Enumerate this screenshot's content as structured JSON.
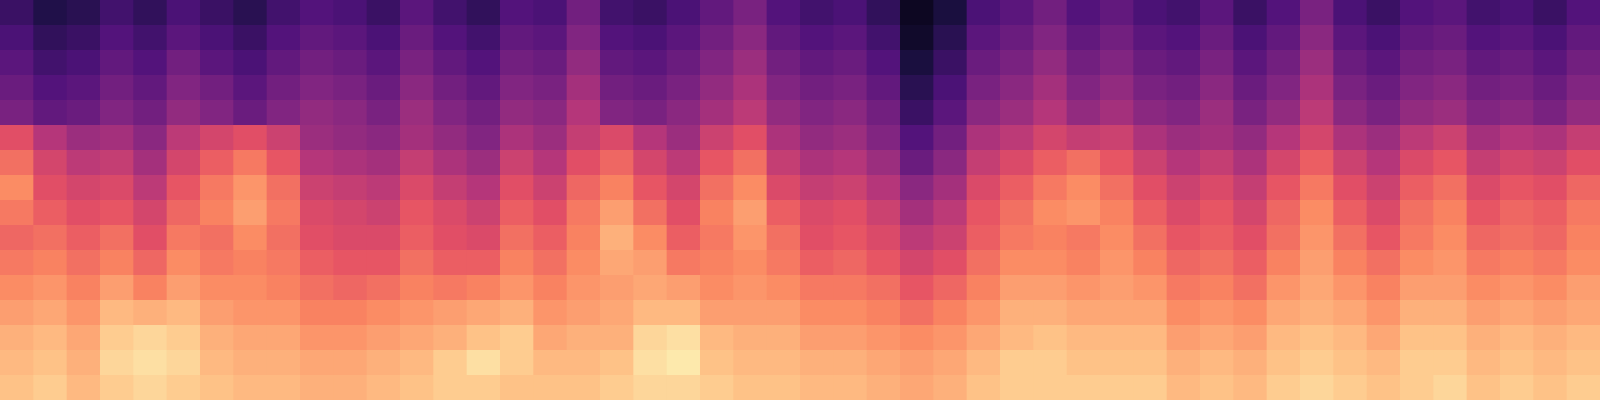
{
  "chart_data": {
    "type": "heatmap",
    "tick_labels": false,
    "xlim": [
      0,
      48
    ],
    "ylim": [
      0,
      16
    ],
    "color_range": [
      0,
      100
    ],
    "cells": [
      [
        20,
        14,
        16,
        22,
        18,
        24,
        20,
        16,
        22,
        26,
        24,
        20,
        28,
        22,
        18,
        26,
        24,
        34,
        22,
        20,
        24,
        30,
        36,
        26,
        22,
        24,
        18,
        6,
        12,
        24,
        28,
        34,
        26,
        30,
        24,
        22,
        28,
        20,
        26,
        36,
        24,
        20,
        26,
        28,
        22,
        24,
        20,
        26
      ],
      [
        24,
        18,
        20,
        26,
        22,
        28,
        24,
        20,
        26,
        30,
        28,
        24,
        32,
        26,
        22,
        30,
        28,
        38,
        26,
        24,
        28,
        34,
        40,
        30,
        26,
        28,
        22,
        8,
        16,
        28,
        32,
        38,
        30,
        34,
        28,
        26,
        32,
        24,
        30,
        40,
        28,
        24,
        30,
        32,
        26,
        28,
        24,
        30
      ],
      [
        28,
        22,
        24,
        30,
        26,
        34,
        28,
        24,
        30,
        34,
        32,
        28,
        36,
        30,
        26,
        34,
        32,
        42,
        30,
        28,
        32,
        38,
        44,
        34,
        30,
        32,
        26,
        12,
        20,
        32,
        36,
        42,
        34,
        38,
        32,
        30,
        36,
        28,
        34,
        44,
        32,
        28,
        34,
        36,
        30,
        32,
        28,
        34
      ],
      [
        32,
        26,
        28,
        34,
        30,
        38,
        34,
        28,
        34,
        38,
        36,
        32,
        40,
        34,
        30,
        38,
        36,
        46,
        34,
        32,
        36,
        42,
        48,
        38,
        34,
        36,
        30,
        16,
        24,
        36,
        40,
        46,
        38,
        42,
        36,
        34,
        40,
        32,
        38,
        48,
        36,
        32,
        38,
        40,
        34,
        36,
        32,
        38
      ],
      [
        36,
        30,
        32,
        38,
        34,
        42,
        38,
        32,
        38,
        42,
        40,
        36,
        44,
        38,
        34,
        42,
        40,
        50,
        38,
        36,
        40,
        46,
        52,
        42,
        38,
        40,
        34,
        20,
        28,
        40,
        44,
        50,
        42,
        46,
        40,
        38,
        44,
        36,
        42,
        52,
        40,
        36,
        42,
        44,
        38,
        40,
        36,
        42
      ],
      [
        62,
        50,
        44,
        46,
        40,
        52,
        58,
        62,
        56,
        44,
        42,
        40,
        46,
        42,
        38,
        48,
        44,
        54,
        60,
        50,
        44,
        56,
        62,
        48,
        42,
        44,
        38,
        26,
        34,
        48,
        52,
        58,
        54,
        56,
        48,
        44,
        46,
        42,
        50,
        58,
        48,
        44,
        52,
        56,
        46,
        50,
        48,
        54
      ],
      [
        70,
        58,
        52,
        54,
        46,
        58,
        66,
        72,
        64,
        50,
        48,
        46,
        54,
        48,
        44,
        56,
        50,
        62,
        68,
        58,
        52,
        64,
        70,
        54,
        48,
        50,
        44,
        32,
        40,
        54,
        60,
        66,
        70,
        64,
        56,
        50,
        54,
        48,
        58,
        66,
        56,
        50,
        60,
        64,
        54,
        58,
        56,
        62
      ],
      [
        76,
        62,
        58,
        60,
        52,
        64,
        72,
        78,
        70,
        56,
        54,
        52,
        60,
        54,
        50,
        62,
        56,
        68,
        74,
        64,
        58,
        70,
        76,
        60,
        54,
        56,
        50,
        40,
        46,
        60,
        66,
        72,
        76,
        70,
        62,
        56,
        60,
        54,
        64,
        72,
        62,
        56,
        66,
        70,
        60,
        64,
        62,
        68
      ],
      [
        72,
        66,
        62,
        64,
        58,
        68,
        74,
        80,
        72,
        60,
        58,
        56,
        64,
        60,
        56,
        66,
        62,
        72,
        80,
        70,
        62,
        74,
        80,
        66,
        60,
        62,
        56,
        46,
        52,
        64,
        70,
        76,
        78,
        74,
        66,
        60,
        64,
        58,
        68,
        76,
        66,
        60,
        70,
        74,
        64,
        68,
        66,
        72
      ],
      [
        68,
        70,
        66,
        70,
        62,
        72,
        70,
        76,
        70,
        62,
        60,
        60,
        66,
        62,
        60,
        70,
        66,
        74,
        84,
        76,
        66,
        72,
        78,
        70,
        62,
        64,
        60,
        52,
        56,
        66,
        72,
        74,
        72,
        76,
        70,
        64,
        66,
        62,
        70,
        78,
        70,
        64,
        72,
        76,
        68,
        70,
        68,
        74
      ],
      [
        72,
        74,
        70,
        74,
        68,
        76,
        72,
        74,
        72,
        66,
        64,
        64,
        70,
        66,
        66,
        74,
        70,
        76,
        82,
        80,
        72,
        74,
        76,
        72,
        66,
        68,
        64,
        58,
        62,
        70,
        76,
        76,
        74,
        78,
        74,
        68,
        70,
        66,
        74,
        80,
        74,
        70,
        76,
        78,
        72,
        74,
        72,
        76
      ],
      [
        76,
        78,
        74,
        80,
        74,
        80,
        76,
        76,
        74,
        70,
        68,
        70,
        74,
        72,
        74,
        78,
        74,
        78,
        80,
        82,
        80,
        76,
        78,
        76,
        72,
        72,
        70,
        64,
        68,
        74,
        80,
        80,
        78,
        80,
        78,
        72,
        74,
        70,
        78,
        82,
        78,
        74,
        80,
        80,
        76,
        78,
        76,
        80
      ],
      [
        80,
        82,
        78,
        86,
        84,
        86,
        80,
        78,
        78,
        74,
        74,
        76,
        78,
        80,
        82,
        84,
        78,
        80,
        82,
        86,
        86,
        80,
        80,
        80,
        76,
        76,
        74,
        70,
        74,
        78,
        84,
        84,
        82,
        82,
        82,
        76,
        78,
        76,
        82,
        84,
        82,
        78,
        84,
        84,
        80,
        82,
        80,
        82
      ],
      [
        84,
        86,
        82,
        90,
        92,
        90,
        84,
        82,
        82,
        78,
        78,
        80,
        82,
        84,
        88,
        90,
        82,
        84,
        84,
        92,
        94,
        86,
        84,
        84,
        80,
        80,
        78,
        76,
        78,
        82,
        86,
        88,
        86,
        86,
        86,
        80,
        82,
        80,
        86,
        88,
        86,
        82,
        88,
        88,
        84,
        86,
        84,
        86
      ],
      [
        86,
        88,
        84,
        92,
        94,
        92,
        86,
        84,
        84,
        82,
        82,
        84,
        86,
        90,
        94,
        90,
        86,
        86,
        88,
        94,
        96,
        88,
        86,
        86,
        84,
        84,
        82,
        80,
        82,
        86,
        90,
        90,
        88,
        88,
        88,
        84,
        86,
        84,
        88,
        90,
        88,
        86,
        90,
        90,
        86,
        88,
        86,
        88
      ],
      [
        88,
        90,
        86,
        90,
        92,
        90,
        88,
        86,
        86,
        84,
        84,
        86,
        88,
        90,
        90,
        88,
        88,
        88,
        90,
        92,
        92,
        90,
        88,
        88,
        86,
        86,
        84,
        82,
        84,
        88,
        90,
        90,
        90,
        90,
        90,
        86,
        88,
        86,
        90,
        92,
        90,
        88,
        90,
        92,
        88,
        90,
        88,
        90
      ]
    ]
  }
}
